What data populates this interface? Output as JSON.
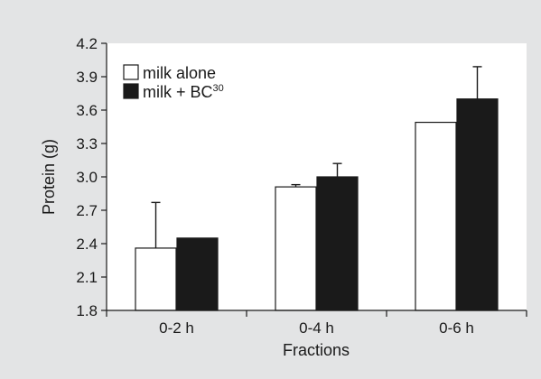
{
  "chart_data": {
    "type": "bar",
    "title": "",
    "xlabel": "Fractions",
    "ylabel": "Protein (g)",
    "categories": [
      "0-2 h",
      "0-4 h",
      "0-6 h"
    ],
    "ylim": [
      1.8,
      4.2
    ],
    "yticks": [
      "1.8",
      "2.1",
      "2.4",
      "2.7",
      "3.0",
      "3.3",
      "3.6",
      "3.9",
      "4.2"
    ],
    "grid": false,
    "legend_position": "top-left",
    "series": [
      {
        "name": "milk alone",
        "values": [
          2.36,
          2.91,
          3.49
        ],
        "error": [
          0.41,
          0.02,
          0.0
        ],
        "color": "#ffffff"
      },
      {
        "name": "milk + BC",
        "name_superscript": "30",
        "values": [
          2.45,
          3.0,
          3.7
        ],
        "error": [
          0.0,
          0.12,
          0.29
        ],
        "color": "#1a1a1a"
      }
    ]
  },
  "style": {
    "background": "#e3e4e5",
    "plot_background": "#ffffff",
    "axis_color": "#1a1a1a"
  }
}
